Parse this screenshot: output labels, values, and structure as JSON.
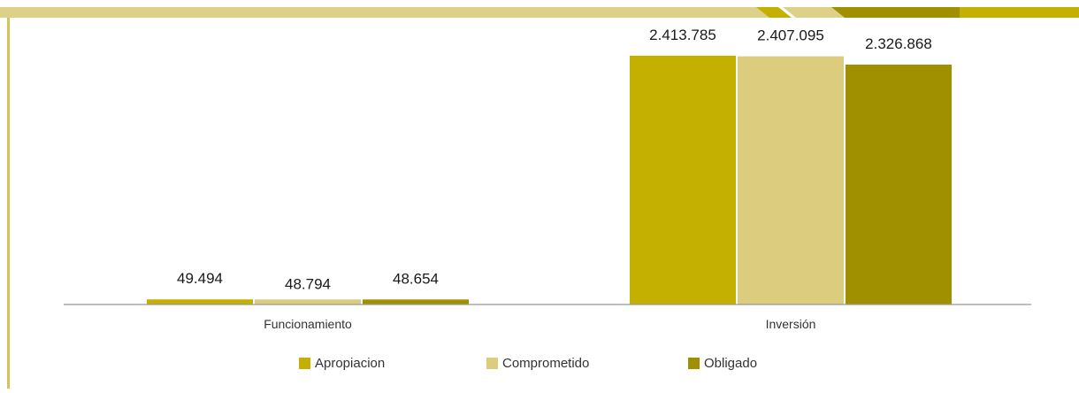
{
  "chart_data": {
    "type": "bar",
    "categories": [
      "Funcionamiento",
      "Inversión"
    ],
    "series": [
      {
        "name": "Apropiacion",
        "values": [
          49494,
          2413785
        ],
        "labels": [
          "49.494",
          "2.413.785"
        ]
      },
      {
        "name": "Comprometido",
        "values": [
          48794,
          2407095
        ],
        "labels": [
          "48.794",
          "2.407.095"
        ]
      },
      {
        "name": "Obligado",
        "values": [
          48654,
          2326868
        ],
        "labels": [
          "48.654",
          "2.326.868"
        ]
      }
    ],
    "title": "",
    "xlabel": "",
    "ylabel": "",
    "ylim": [
      0,
      2550000
    ],
    "grid": false,
    "legend": "bottom"
  },
  "colors": {
    "apropiacion": "#c4b000",
    "comprometido": "#dccd7e",
    "obligado": "#a09000",
    "frame": "#d4c25a",
    "axis": "#999999"
  }
}
